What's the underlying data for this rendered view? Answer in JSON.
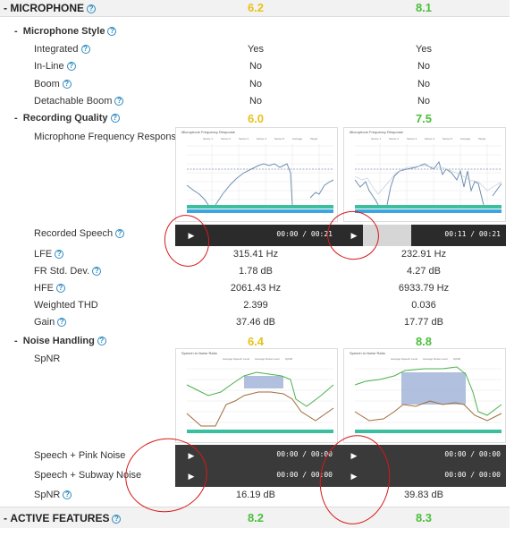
{
  "colors": {
    "yellow": "#e8c21a",
    "green": "#4cbf3c",
    "redInk": "#d81818",
    "help": "#2e8bc0"
  },
  "microphone": {
    "title": "MICROPHONE",
    "score1": "6.2",
    "score2": "8.1"
  },
  "style": {
    "title": "Microphone Style",
    "rows": [
      {
        "label": "Integrated",
        "v1": "Yes",
        "v2": "Yes"
      },
      {
        "label": "In-Line",
        "v1": "No",
        "v2": "No"
      },
      {
        "label": "Boom",
        "v1": "No",
        "v2": "No"
      },
      {
        "label": "Detachable Boom",
        "v1": "No",
        "v2": "No"
      }
    ]
  },
  "recording": {
    "title": "Recording Quality",
    "score1": "6.0",
    "score2": "7.5",
    "freq_label": "Microphone Frequency Response",
    "speech_label": "Recorded Speech",
    "player1_time": "00:00 / 00:21",
    "player2_time": "00:11 / 00:21",
    "player2_progress": 0.52,
    "chart_title": "Microphone Frequency Response",
    "legend": [
      "Series 1",
      "Series 2",
      "Series 3",
      "Series 4",
      "Series 5",
      "Average",
      "Target"
    ],
    "rows": [
      {
        "label": "LFE",
        "v1": "315.41 Hz",
        "v2": "232.91 Hz"
      },
      {
        "label": "FR Std. Dev.",
        "v1": "1.78 dB",
        "v2": "4.27 dB"
      },
      {
        "label": "HFE",
        "v1": "2061.43 Hz",
        "v2": "6933.79 Hz"
      },
      {
        "label": "Weighted THD",
        "v1": "2.399",
        "v2": "0.036"
      },
      {
        "label": "Gain",
        "v1": "37.46 dB",
        "v2": "17.77 dB"
      }
    ]
  },
  "noise": {
    "title": "Noise Handling",
    "score1": "6.4",
    "score2": "8.8",
    "spnr_label": "SpNR",
    "chart_title": "Speech to Noise Ratio",
    "legend": [
      "Average Speech Level",
      "Average Noise Level",
      "SpNR"
    ],
    "pink_label": "Speech + Pink Noise",
    "subway_label": "Speech + Subway Noise",
    "player_time": "00:00 / 00:00",
    "spnr_row": {
      "label": "SpNR",
      "v1": "16.19 dB",
      "v2": "39.83 dB"
    }
  },
  "active": {
    "title": "ACTIVE FEATURES",
    "score1": "8.2",
    "score2": "8.3"
  }
}
